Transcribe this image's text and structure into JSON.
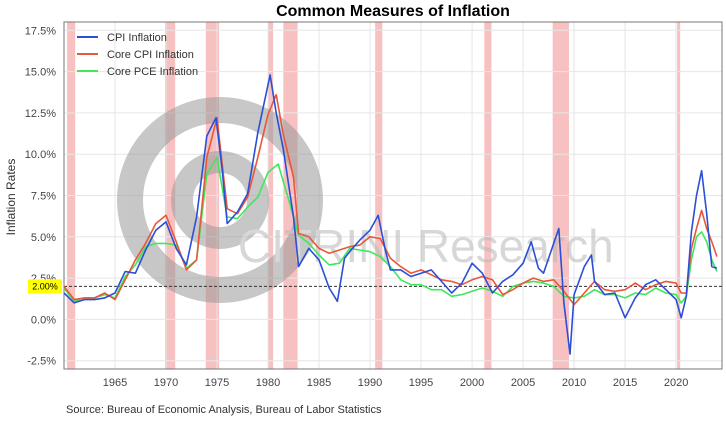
{
  "chart_data": {
    "type": "line",
    "title": "Common Measures of Inflation",
    "xlabel": "",
    "ylabel": "Inflation Rates",
    "xlim": [
      1960,
      2024.5
    ],
    "ylim": [
      -3,
      18
    ],
    "yticks": [
      -2.5,
      0,
      2.5,
      5,
      7.5,
      10,
      12.5,
      15,
      17.5
    ],
    "ytick_labels": [
      "-2.5%",
      "0.0%",
      "2.5%",
      "5.0%",
      "7.5%",
      "10.0%",
      "12.5%",
      "15.0%",
      "17.5%"
    ],
    "xticks": [
      1965,
      1970,
      1975,
      1980,
      1985,
      1990,
      1995,
      2000,
      2005,
      2010,
      2015,
      2020
    ],
    "xtick_labels": [
      "1965",
      "1970",
      "1975",
      "1980",
      "1985",
      "1990",
      "1995",
      "2000",
      "2005",
      "2010",
      "2015",
      "2020"
    ],
    "reference_line": {
      "value": 2.0,
      "label": "2.00%",
      "color": "#333333",
      "label_bg": "#ffff00"
    },
    "recessions": [
      [
        1960.3,
        1961.1
      ],
      [
        1969.9,
        1970.9
      ],
      [
        1973.9,
        1975.2
      ],
      [
        1980.0,
        1980.5
      ],
      [
        1981.5,
        1982.9
      ],
      [
        1990.5,
        1991.2
      ],
      [
        2001.2,
        2001.9
      ],
      [
        2007.9,
        2009.5
      ],
      [
        2020.1,
        2020.4
      ]
    ],
    "recession_color": "#f7b6b6",
    "legend_position": "top-left",
    "series": [
      {
        "name": "CPI Inflation",
        "color": "#2b4fd6",
        "x": [
          1960,
          1961,
          1962,
          1963,
          1964,
          1965,
          1966,
          1967,
          1968,
          1969,
          1970,
          1971,
          1972,
          1973,
          1974,
          1974.9,
          1975.5,
          1976,
          1977,
          1978,
          1979,
          1980.2,
          1980.8,
          1981.5,
          1982.5,
          1983,
          1984,
          1985,
          1986,
          1986.8,
          1987.5,
          1988,
          1989,
          1990,
          1990.8,
          1991.5,
          1992,
          1993,
          1994,
          1995,
          1996,
          1997,
          1998,
          1999,
          2000,
          2001,
          2002,
          2003,
          2004,
          2005,
          2005.8,
          2006.5,
          2007,
          2008.5,
          2009,
          2009.6,
          2010,
          2011,
          2011.7,
          2012,
          2013,
          2014,
          2015,
          2016,
          2017,
          2018,
          2019,
          2020,
          2020.5,
          2021,
          2021.5,
          2022,
          2022.5,
          2023,
          2023.5,
          2024
        ],
        "values": [
          1.6,
          1.0,
          1.2,
          1.2,
          1.3,
          1.6,
          2.9,
          2.8,
          4.2,
          5.4,
          5.9,
          4.3,
          3.3,
          6.2,
          11.1,
          12.2,
          9.1,
          5.8,
          6.5,
          7.6,
          11.3,
          14.8,
          12.5,
          10.3,
          6.2,
          3.2,
          4.3,
          3.6,
          1.9,
          1.1,
          3.7,
          4.1,
          4.8,
          5.4,
          6.3,
          4.2,
          3.0,
          3.0,
          2.6,
          2.8,
          3.0,
          2.3,
          1.6,
          2.2,
          3.4,
          2.8,
          1.6,
          2.3,
          2.7,
          3.4,
          4.7,
          3.1,
          2.8,
          5.5,
          1.0,
          -2.1,
          1.5,
          3.2,
          3.9,
          2.3,
          1.5,
          1.6,
          0.1,
          1.3,
          2.1,
          2.4,
          1.8,
          1.2,
          0.1,
          1.4,
          5.3,
          7.5,
          9.0,
          6.4,
          3.2,
          3.1
        ]
      },
      {
        "name": "Core CPI Inflation",
        "color": "#e9573a",
        "x": [
          1960,
          1961,
          1962,
          1963,
          1964,
          1965,
          1966,
          1967,
          1968,
          1969,
          1970,
          1971,
          1972,
          1973,
          1974,
          1975,
          1976,
          1977,
          1978,
          1979,
          1980,
          1980.8,
          1981.5,
          1982.5,
          1983,
          1984,
          1985,
          1986,
          1987,
          1988,
          1989,
          1990,
          1991,
          1992,
          1993,
          1994,
          1995,
          1996,
          1997,
          1998,
          1999,
          2000,
          2001,
          2002,
          2003,
          2004,
          2005,
          2006,
          2007,
          2008,
          2009,
          2010,
          2011,
          2012,
          2013,
          2014,
          2015,
          2016,
          2017,
          2018,
          2019,
          2020,
          2020.5,
          2021,
          2021.5,
          2022,
          2022.5,
          2023,
          2023.5,
          2024
        ],
        "values": [
          2.0,
          1.2,
          1.3,
          1.3,
          1.6,
          1.2,
          2.4,
          3.6,
          4.6,
          5.8,
          6.3,
          4.7,
          3.0,
          3.6,
          9.8,
          12.2,
          6.7,
          6.4,
          7.4,
          9.8,
          12.4,
          13.6,
          11.2,
          8.6,
          5.2,
          5.0,
          4.3,
          4.0,
          4.2,
          4.4,
          4.5,
          5.0,
          4.9,
          3.7,
          3.2,
          2.8,
          3.0,
          2.7,
          2.4,
          2.3,
          2.1,
          2.4,
          2.6,
          2.4,
          1.5,
          1.8,
          2.2,
          2.5,
          2.3,
          2.4,
          1.7,
          0.9,
          1.6,
          2.3,
          1.8,
          1.7,
          1.8,
          2.2,
          1.8,
          2.1,
          2.3,
          2.2,
          1.6,
          1.6,
          4.3,
          5.5,
          6.6,
          5.5,
          4.7,
          3.8
        ]
      },
      {
        "name": "Core PCE Inflation",
        "color": "#3ee85a",
        "x": [
          1960,
          1961,
          1962,
          1963,
          1964,
          1965,
          1966,
          1967,
          1968,
          1969,
          1970,
          1971,
          1972,
          1973,
          1974,
          1975,
          1976,
          1977,
          1978,
          1979,
          1980,
          1981,
          1982,
          1983,
          1984,
          1985,
          1986,
          1987,
          1988,
          1989,
          1990,
          1991,
          1992,
          1993,
          1994,
          1995,
          1996,
          1997,
          1998,
          1999,
          2000,
          2001,
          2002,
          2003,
          2004,
          2005,
          2006,
          2007,
          2008,
          2009,
          2010,
          2011,
          2012,
          2013,
          2014,
          2015,
          2016,
          2017,
          2018,
          2019,
          2020,
          2020.5,
          2021,
          2021.5,
          2022,
          2022.5,
          2023,
          2023.5,
          2024
        ],
        "values": [
          1.9,
          1.1,
          1.3,
          1.3,
          1.5,
          1.3,
          2.6,
          3.3,
          4.4,
          4.6,
          4.6,
          4.5,
          3.1,
          3.6,
          8.8,
          9.8,
          6.2,
          6.1,
          6.8,
          7.4,
          8.9,
          9.4,
          7.3,
          5.1,
          4.6,
          3.9,
          3.3,
          3.4,
          4.3,
          4.2,
          4.1,
          3.8,
          3.2,
          2.4,
          2.1,
          2.1,
          1.8,
          1.8,
          1.4,
          1.5,
          1.7,
          1.9,
          1.7,
          1.4,
          2.0,
          2.2,
          2.3,
          2.2,
          2.0,
          1.4,
          1.3,
          1.4,
          1.8,
          1.5,
          1.5,
          1.3,
          1.6,
          1.5,
          1.9,
          1.6,
          1.5,
          1.0,
          1.4,
          3.6,
          5.0,
          5.3,
          4.7,
          3.6,
          2.9
        ]
      }
    ],
    "source_text": "Source: Bureau of Economic Analysis, Bureau of Labor Statistics",
    "watermark": "CITRINI Research"
  }
}
